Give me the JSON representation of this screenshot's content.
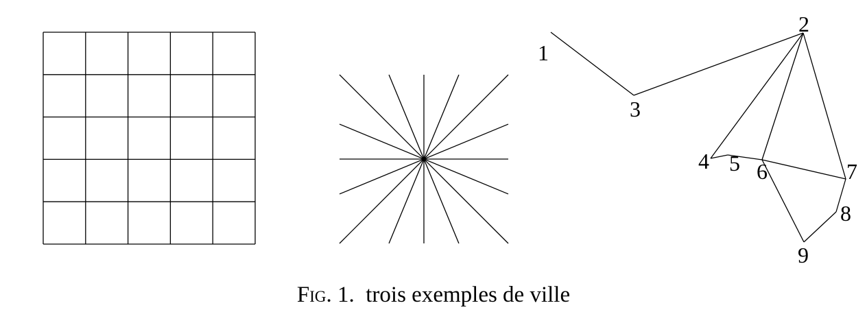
{
  "caption": {
    "fig_label": "Fig.",
    "fig_number": "1.",
    "text": "trois exemples de ville"
  },
  "grid_city": {
    "rows": 5,
    "cols": 5
  },
  "radial_city": {
    "rays": 16
  },
  "network_city": {
    "nodes": [
      {
        "id": "1",
        "label": "1"
      },
      {
        "id": "2",
        "label": "2"
      },
      {
        "id": "3",
        "label": "3"
      },
      {
        "id": "4",
        "label": "4"
      },
      {
        "id": "5",
        "label": "5"
      },
      {
        "id": "6",
        "label": "6"
      },
      {
        "id": "7",
        "label": "7"
      },
      {
        "id": "8",
        "label": "8"
      },
      {
        "id": "9",
        "label": "9"
      }
    ],
    "edges": [
      [
        "1",
        "3"
      ],
      [
        "3",
        "2"
      ],
      [
        "2",
        "4"
      ],
      [
        "2",
        "6"
      ],
      [
        "2",
        "7"
      ],
      [
        "4",
        "5"
      ],
      [
        "5",
        "6"
      ],
      [
        "6",
        "7"
      ],
      [
        "7",
        "8"
      ],
      [
        "8",
        "9"
      ],
      [
        "9",
        "6"
      ]
    ]
  }
}
